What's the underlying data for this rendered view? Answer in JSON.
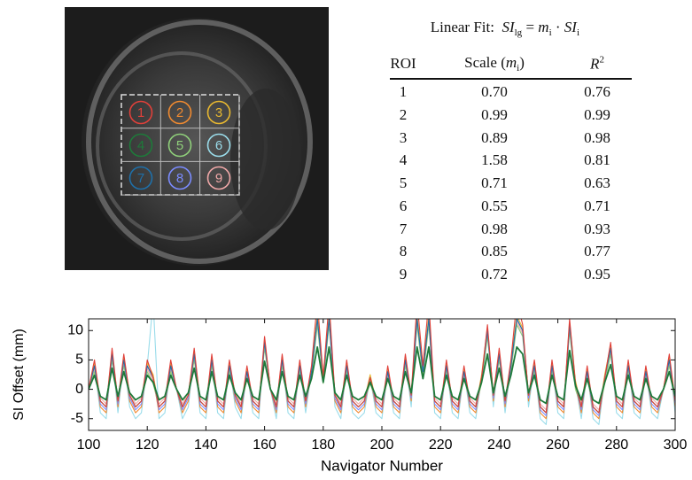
{
  "image": {
    "rois": [
      {
        "label": "1",
        "color": "#e0403a"
      },
      {
        "label": "2",
        "color": "#f08a30"
      },
      {
        "label": "3",
        "color": "#e8b830"
      },
      {
        "label": "4",
        "color": "#1e7a3a"
      },
      {
        "label": "5",
        "color": "#8fcf7a"
      },
      {
        "label": "6",
        "color": "#9adcea"
      },
      {
        "label": "7",
        "color": "#1f6fa8"
      },
      {
        "label": "8",
        "color": "#7b8cff"
      },
      {
        "label": "9",
        "color": "#f0a8a8"
      }
    ]
  },
  "table": {
    "title": {
      "label": "Linear Fit:",
      "formula": [
        {
          "text": "SI",
          "sub": "lg"
        },
        {
          "text": "="
        },
        {
          "text": "m",
          "sub": "i"
        },
        {
          "text": "·"
        },
        {
          "text": "SI",
          "sub": "i"
        }
      ]
    },
    "headers": [
      {
        "text": "ROI"
      },
      {
        "text": "Scale (",
        "math": "m",
        "sub": "i",
        "tail": ")"
      },
      {
        "math": "R",
        "sup": "2"
      }
    ],
    "rows": [
      [
        "1",
        "0.70",
        "0.76"
      ],
      [
        "2",
        "0.99",
        "0.99"
      ],
      [
        "3",
        "0.89",
        "0.98"
      ],
      [
        "4",
        "1.58",
        "0.81"
      ],
      [
        "5",
        "0.71",
        "0.63"
      ],
      [
        "6",
        "0.55",
        "0.71"
      ],
      [
        "7",
        "0.98",
        "0.93"
      ],
      [
        "8",
        "0.85",
        "0.77"
      ],
      [
        "9",
        "0.72",
        "0.95"
      ]
    ]
  },
  "chart_data": {
    "type": "line",
    "xlabel": "Navigator Number",
    "ylabel": "SI Offset (mm)",
    "xlim": [
      100,
      300
    ],
    "xticks": [
      100,
      120,
      140,
      160,
      180,
      200,
      220,
      240,
      260,
      280,
      300
    ],
    "ylim": [
      -7,
      12
    ],
    "yticks": [
      -5,
      0,
      5,
      10
    ],
    "x": [
      100,
      102,
      104,
      106,
      108,
      110,
      112,
      114,
      116,
      118,
      120,
      122,
      124,
      126,
      128,
      130,
      132,
      134,
      136,
      138,
      140,
      142,
      144,
      146,
      148,
      150,
      152,
      154,
      156,
      158,
      160,
      162,
      164,
      166,
      168,
      170,
      172,
      174,
      176,
      178,
      180,
      182,
      184,
      186,
      188,
      190,
      192,
      194,
      196,
      198,
      200,
      202,
      204,
      206,
      208,
      210,
      212,
      214,
      216,
      218,
      220,
      222,
      224,
      226,
      228,
      230,
      232,
      234,
      236,
      238,
      240,
      242,
      244,
      246,
      248,
      250,
      252,
      254,
      256,
      258,
      260,
      262,
      264,
      266,
      268,
      270,
      272,
      274,
      276,
      278,
      280,
      282,
      284,
      286,
      288,
      290,
      292,
      294,
      296,
      298,
      300
    ],
    "series": [
      {
        "color": "#9adcea",
        "values": [
          0,
          4,
          -4,
          -5,
          6,
          -4,
          5,
          -3,
          -5,
          -4,
          4,
          15,
          -5,
          -4,
          4,
          0,
          -5,
          -3,
          6,
          -4,
          -5,
          5,
          -4,
          -5,
          4,
          -3,
          -5,
          3,
          -4,
          -5,
          8,
          0,
          -5,
          5,
          -4,
          -5,
          4,
          -4,
          3,
          12,
          2,
          12,
          -3,
          -5,
          4,
          -4,
          -5,
          -4,
          2,
          -4,
          -5,
          3,
          -4,
          -5,
          5,
          -3,
          12,
          3,
          12,
          -4,
          -5,
          4,
          -4,
          -5,
          3,
          -4,
          -5,
          2,
          10,
          -3,
          6,
          -4,
          4,
          12,
          10,
          -3,
          4,
          -5,
          -6,
          4,
          -4,
          -5,
          11,
          1,
          -5,
          3,
          -5,
          -6,
          2,
          7,
          -4,
          -5,
          4,
          -4,
          -5,
          3,
          -4,
          -5,
          0,
          5,
          -4
        ]
      },
      {
        "color": "#f0a8a8",
        "values": [
          0,
          3.5,
          -1.5,
          -2.5,
          5.5,
          -1.5,
          4.5,
          -0.5,
          -2.5,
          -1.5,
          3.5,
          1.5,
          -2.5,
          -1.5,
          3.5,
          0,
          -2.5,
          -0.5,
          5.5,
          -1.5,
          -2.5,
          4.5,
          -1.5,
          -2.5,
          3.5,
          -0.5,
          -2.5,
          2.5,
          -1.5,
          -2.5,
          7.5,
          0,
          -2.5,
          4.5,
          -1.5,
          -2.5,
          3.5,
          -1.5,
          2.5,
          11.5,
          1.5,
          11.5,
          -0.5,
          -2.5,
          3.5,
          -1.5,
          -2.5,
          -1.5,
          1.5,
          -1.5,
          -2.5,
          2.5,
          -1.5,
          -2.5,
          4.5,
          -0.5,
          11.5,
          2.5,
          11.5,
          -1.5,
          -2.5,
          3.5,
          -1.5,
          -2.5,
          2.5,
          -1.5,
          -2.5,
          1.5,
          9.5,
          -0.5,
          5.5,
          -1.5,
          3.5,
          11.5,
          9.5,
          -0.5,
          3.5,
          -2.5,
          -3.5,
          3.5,
          -1.5,
          -2.5,
          10.5,
          0.5,
          -2.5,
          2.5,
          -2.5,
          -3.5,
          1.5,
          6.5,
          -1.5,
          -2.5,
          3.5,
          -1.5,
          -2.5,
          2.5,
          -1.5,
          -2.5,
          0,
          4.5,
          -1.5
        ]
      },
      {
        "color": "#8fcf7a",
        "values": [
          0,
          3,
          -2,
          -3,
          5,
          -2,
          4,
          -1,
          -3,
          -2,
          3,
          1,
          -3,
          -2,
          3,
          0,
          -3,
          -1,
          5,
          -2,
          -3,
          4,
          -2,
          -3,
          3,
          -1,
          -3,
          2,
          -2,
          -3,
          7,
          0,
          -3,
          4,
          -2,
          -3,
          3,
          -2,
          2,
          11,
          1,
          11,
          -1,
          -3,
          3,
          -2,
          -3,
          -2,
          1,
          -2,
          -3,
          2,
          -2,
          -3,
          4,
          -1,
          11,
          2,
          11,
          -2,
          -3,
          3,
          -2,
          -3,
          2,
          -2,
          -3,
          1,
          9,
          -1,
          5,
          -2,
          3,
          11,
          9,
          -1,
          3,
          -3,
          -4,
          3,
          -2,
          -3,
          10,
          0,
          -3,
          2,
          -3,
          -4,
          1,
          6,
          -2,
          -3,
          3,
          -2,
          -3,
          2,
          -2,
          -3,
          0,
          4,
          -2
        ]
      },
      {
        "color": "#f08a30",
        "values": [
          0,
          4,
          -3,
          -4,
          6,
          -3,
          5,
          -2,
          -4,
          -3,
          4,
          2,
          -4,
          -3,
          4,
          0,
          -4,
          -2,
          6,
          -3,
          -4,
          5,
          -3,
          -4,
          4,
          -2,
          -4,
          3,
          -3,
          -4,
          8,
          0,
          -4,
          5,
          -3,
          -4,
          4,
          -3,
          3,
          12,
          2,
          12,
          -2,
          -4,
          4,
          -3,
          -4,
          -3,
          2,
          -3,
          -4,
          3,
          -3,
          -4,
          5,
          -2,
          12,
          3,
          12,
          -3,
          -4,
          4,
          -3,
          -4,
          3,
          -3,
          -4,
          2,
          10,
          -2,
          6,
          -3,
          4,
          12,
          10,
          -2,
          4,
          -4,
          -5,
          4,
          -3,
          -4,
          11,
          1,
          -4,
          3,
          -4,
          -5,
          2,
          7,
          -3,
          -4,
          4,
          -3,
          -4,
          3,
          -3,
          -4,
          0,
          5,
          -3
        ]
      },
      {
        "color": "#7b8cff",
        "values": [
          0,
          4,
          -2.5,
          -3.5,
          6,
          -2.5,
          5,
          -1.5,
          -3.5,
          -2.5,
          4,
          2,
          -3.5,
          -2.5,
          4,
          0,
          -3.5,
          -1.5,
          6,
          -2.5,
          -3.5,
          5,
          -2.5,
          -3.5,
          4,
          -1.5,
          -3.5,
          3,
          -2.5,
          -3.5,
          8,
          0,
          -3.5,
          5,
          -2.5,
          -3.5,
          4,
          -2.5,
          3,
          12,
          2,
          12,
          -1.5,
          -3.5,
          4,
          -2.5,
          -3.5,
          -2.5,
          2,
          -2.5,
          -3.5,
          3,
          -2.5,
          -3.5,
          5,
          -1.5,
          12,
          3,
          12,
          -2.5,
          -3.5,
          4,
          -2.5,
          -3.5,
          3,
          -2.5,
          -3.5,
          2,
          10,
          -1.5,
          6,
          -2.5,
          4,
          12,
          10,
          -1.5,
          4,
          -3.5,
          -4.5,
          4,
          -2.5,
          -3.5,
          11,
          1,
          -3.5,
          3,
          -3.5,
          -4.5,
          2,
          7,
          -2.5,
          -3.5,
          4,
          -2.5,
          -3.5,
          3,
          -2.5,
          -3.5,
          0,
          5,
          -2.5
        ]
      },
      {
        "color": "#e8b830",
        "values": [
          0,
          4.5,
          -2,
          -3,
          6.5,
          -2,
          5.5,
          -1,
          -3,
          -2,
          4.5,
          2.5,
          -3,
          -2,
          4.5,
          0,
          -3,
          -1,
          6.5,
          -2,
          -3,
          5.5,
          -2,
          -3,
          4.5,
          -1,
          -3,
          3.5,
          -2,
          -3,
          8.5,
          0,
          -3,
          5.5,
          -2,
          -3,
          4.5,
          -2,
          3.5,
          12.5,
          2.5,
          12.5,
          -1,
          -3,
          4.5,
          -2,
          -3,
          -2,
          2.5,
          -2,
          -3,
          3.5,
          -2,
          -3,
          5.5,
          -1,
          12.5,
          3.5,
          12.5,
          -2,
          -3,
          4.5,
          -2,
          -3,
          3.5,
          -2,
          -3,
          2.5,
          10.5,
          -1,
          6.5,
          -2,
          4.5,
          12.5,
          10.5,
          -1,
          4.5,
          -3,
          -4,
          4.5,
          -2,
          -3,
          11.5,
          1.5,
          -3,
          3.5,
          -3,
          -4,
          2.5,
          7.5,
          -2,
          -3,
          4.5,
          -2,
          -3,
          3.5,
          -2,
          -3,
          0,
          5.5,
          -2
        ]
      },
      {
        "color": "#1f6fa8",
        "values": [
          0,
          4,
          -2,
          -3,
          6,
          -2,
          5,
          -1,
          -3,
          -2,
          4,
          2,
          -3,
          -2,
          4,
          0,
          -3,
          -1,
          6,
          -2,
          -3,
          5,
          -2,
          -3,
          4,
          -1,
          -3,
          3,
          -2,
          -3,
          8,
          0,
          -3,
          5,
          -2,
          -3,
          4,
          -2,
          3,
          12,
          2,
          12,
          -1,
          -3,
          4,
          -2,
          -3,
          -2,
          2,
          -2,
          -3,
          3,
          -2,
          -3,
          5,
          -1,
          12,
          3,
          12,
          -2,
          -3,
          4,
          -2,
          -3,
          3,
          -2,
          -3,
          2,
          10,
          -1,
          6,
          -2,
          4,
          12,
          10,
          -1,
          4,
          -3,
          -4,
          4,
          -2,
          -3,
          11,
          1,
          -3,
          3,
          -3,
          -4,
          2,
          7,
          -2,
          -3,
          4,
          -2,
          -3,
          3,
          -2,
          -3,
          0,
          5,
          -2
        ]
      },
      {
        "color": "#e0403a",
        "values": [
          0,
          5,
          -2,
          -3,
          7,
          -2,
          6,
          -1,
          -3,
          -2,
          5,
          2,
          -3,
          -2,
          5,
          0,
          -3,
          -1,
          7,
          -2,
          -3,
          6,
          -2,
          -3,
          5,
          -1,
          -3,
          4,
          -2,
          -3,
          9,
          0,
          -3,
          6,
          -2,
          -3,
          5,
          -2,
          4,
          15,
          2,
          15,
          -1,
          -3,
          5,
          -2,
          -3,
          -2,
          2,
          -2,
          -3,
          4,
          -2,
          -3,
          6,
          -1,
          15,
          4,
          15,
          -2,
          -3,
          5,
          -2,
          -3,
          4,
          -2,
          -3,
          2,
          11,
          -1,
          7,
          -2,
          5,
          15,
          11,
          -1,
          5,
          -3,
          -4,
          5,
          -2,
          -3,
          12,
          1,
          -3,
          4,
          -3,
          -4,
          2,
          8,
          -2,
          -3,
          5,
          -2,
          -3,
          4,
          -2,
          -3,
          0,
          6,
          -2
        ]
      },
      {
        "color": "#1e7a3a",
        "values": [
          0,
          2.4,
          -1.2,
          -1.8,
          3.6,
          -1.2,
          3,
          -0.6,
          -1.8,
          -1.2,
          2.4,
          1.2,
          -1.8,
          -1.2,
          2.4,
          0,
          -1.8,
          -0.6,
          3.6,
          -1.2,
          -1.8,
          3,
          -1.2,
          -1.8,
          2.4,
          -0.6,
          -1.8,
          1.8,
          -1.2,
          -1.8,
          4.8,
          0,
          -1.8,
          3,
          -1.2,
          -1.8,
          2.4,
          -1.2,
          1.8,
          7.2,
          1.2,
          7.2,
          -0.6,
          -1.8,
          2.4,
          -1.2,
          -1.8,
          -1.2,
          1.2,
          -1.2,
          -1.8,
          1.8,
          -1.2,
          -1.8,
          3,
          -0.6,
          7.2,
          1.8,
          7.2,
          -1.2,
          -1.8,
          2.4,
          -1.2,
          -1.8,
          1.8,
          -1.2,
          -1.8,
          1.2,
          6,
          -0.6,
          3.6,
          -1.2,
          2.4,
          7.2,
          6,
          -0.6,
          2.4,
          -1.8,
          -2.4,
          2.4,
          -1.2,
          -1.8,
          6.6,
          0.6,
          -1.8,
          1.8,
          -1.8,
          -2.4,
          1.2,
          4.2,
          -1.2,
          -1.8,
          2.4,
          -1.2,
          -1.8,
          1.8,
          -1.2,
          -1.8,
          0,
          3,
          -1.2
        ]
      }
    ]
  }
}
